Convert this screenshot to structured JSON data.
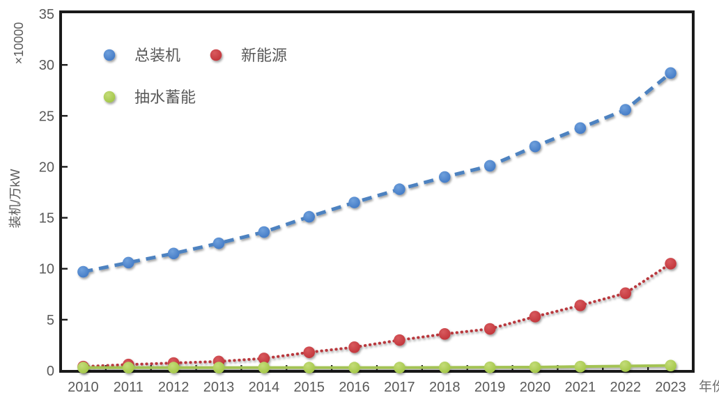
{
  "chart_data": {
    "type": "line",
    "title": "",
    "xlabel": "年份",
    "ylabel": "装机/万kW",
    "multiplier_label": "×10000",
    "ylim": [
      0,
      35
    ],
    "yticks": [
      0,
      5,
      10,
      15,
      20,
      25,
      30,
      35
    ],
    "grid": false,
    "legend_position": "top-left-inside",
    "categories": [
      "2010",
      "2011",
      "2012",
      "2013",
      "2014",
      "2015",
      "2016",
      "2017",
      "2018",
      "2019",
      "2020",
      "2021",
      "2022",
      "2023"
    ],
    "series": [
      {
        "name": "总装机",
        "style": "dashed",
        "line_color": "#4d82c0",
        "marker_color": "#3b74c2",
        "marker_color_light": "#6fa0dc",
        "values": [
          9.7,
          10.6,
          11.5,
          12.5,
          13.6,
          15.1,
          16.5,
          17.8,
          19.0,
          20.1,
          22.0,
          23.8,
          25.6,
          29.2
        ]
      },
      {
        "name": "新能源",
        "style": "dotted",
        "line_color": "#b8373d",
        "marker_color": "#bd2e34",
        "marker_color_light": "#d85a5e",
        "values": [
          0.4,
          0.6,
          0.75,
          0.9,
          1.2,
          1.8,
          2.3,
          3.0,
          3.6,
          4.1,
          5.3,
          6.4,
          7.6,
          10.5
        ]
      },
      {
        "name": "抽水蓄能",
        "style": "solid",
        "line_color": "#a3c353",
        "marker_color": "#9cc23e",
        "marker_color_light": "#c4dc79",
        "values": [
          0.3,
          0.3,
          0.3,
          0.3,
          0.3,
          0.3,
          0.3,
          0.3,
          0.32,
          0.33,
          0.34,
          0.4,
          0.45,
          0.5
        ]
      }
    ],
    "colors": {
      "axis": "#1a1a1a",
      "tick_label": "#595959",
      "axis_title": "#595959",
      "legend_text": "#595959",
      "background": "#ffffff"
    }
  }
}
